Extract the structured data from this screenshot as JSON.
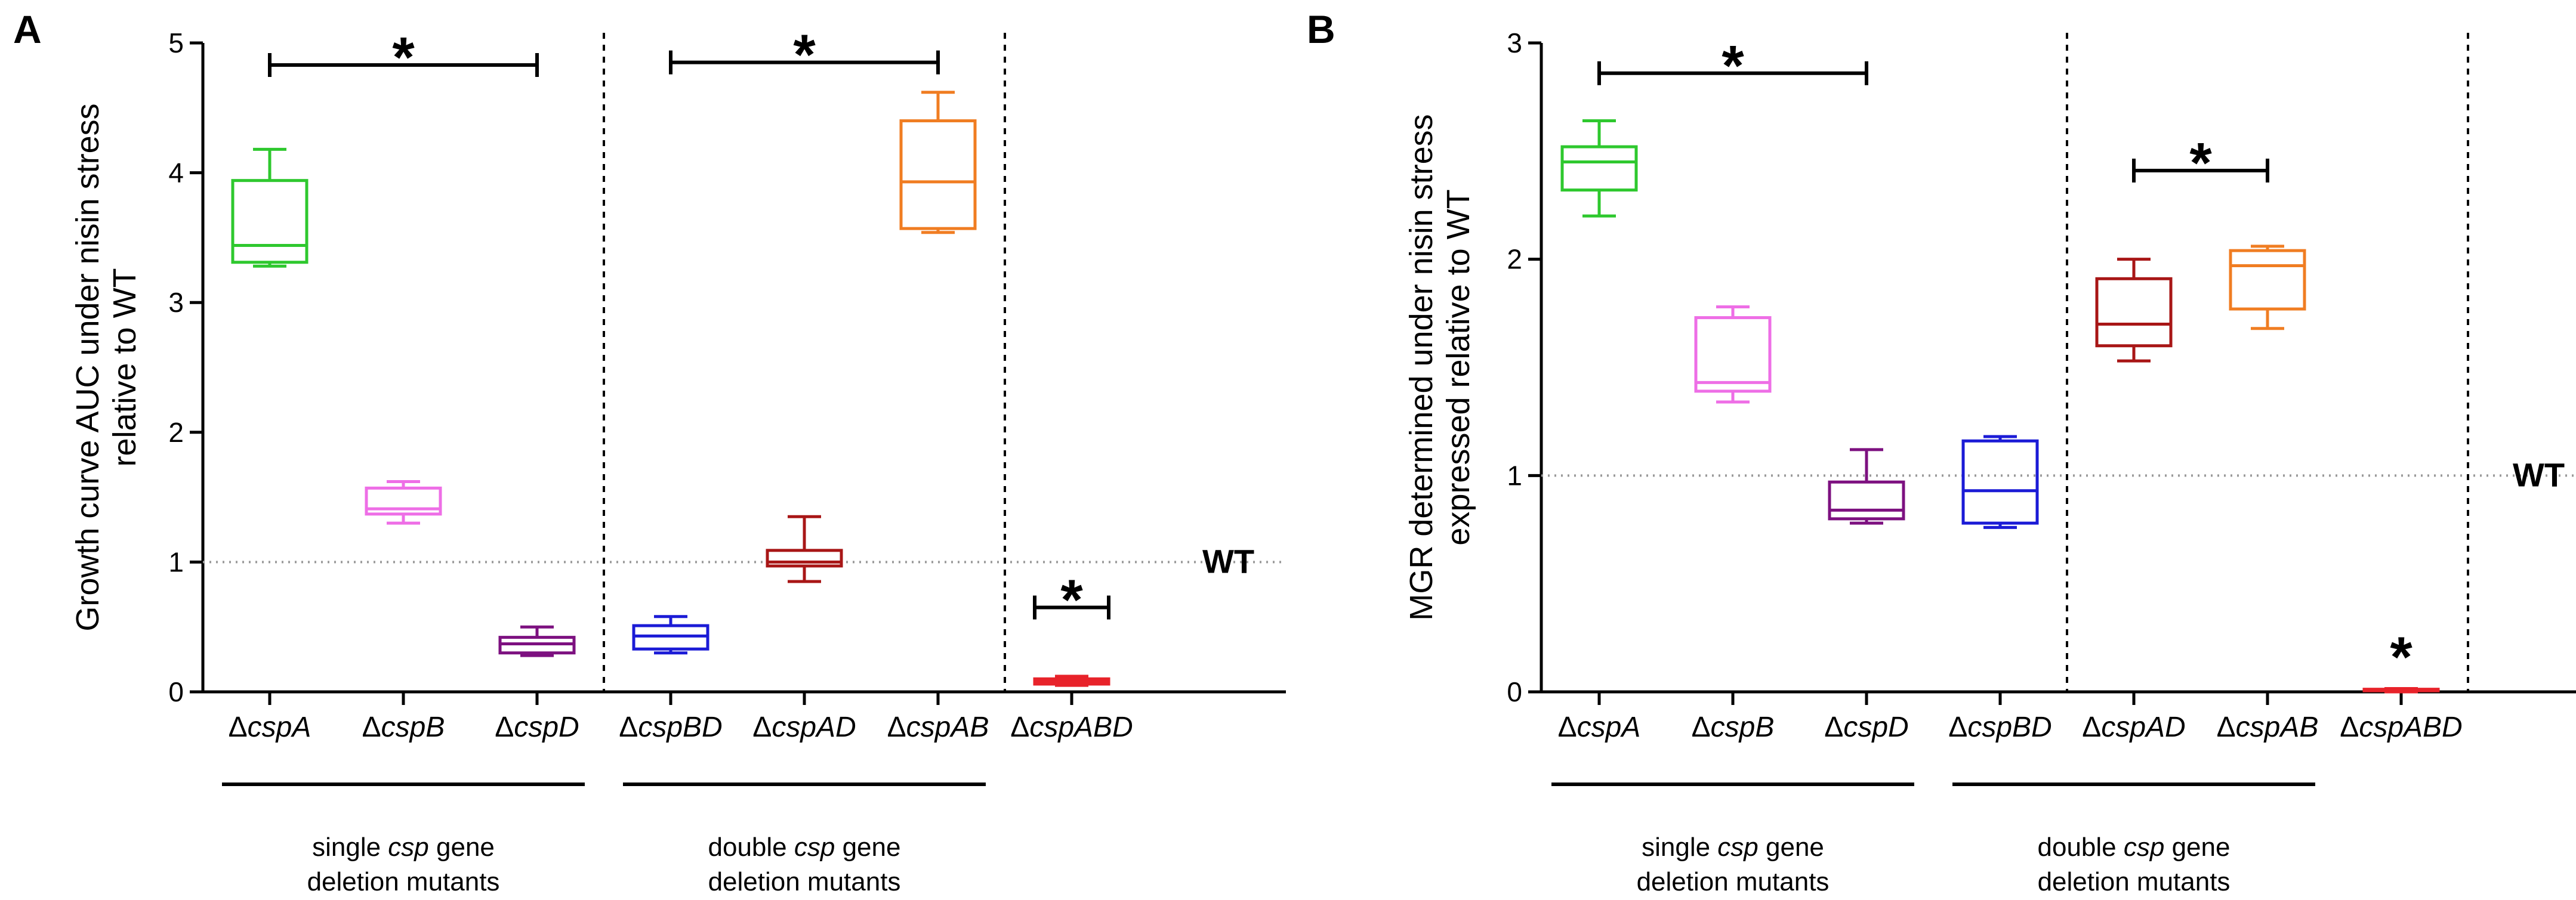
{
  "chart_data": [
    {
      "type": "box",
      "panel": "A",
      "ylabel_lines": [
        "Growth curve AUC under nisin stress",
        "relative to WT"
      ],
      "ylim": [
        0,
        5
      ],
      "yticks": [
        0,
        1,
        2,
        3,
        4,
        5
      ],
      "ytick_labels": [
        "0",
        "1",
        "2",
        "3",
        "4",
        "5"
      ],
      "reference_line": {
        "value": 1,
        "label": "WT"
      },
      "categories": [
        {
          "prefix": "Δ",
          "name": "cspA",
          "color": "#2ec82e",
          "box": {
            "min": 3.28,
            "q1": 3.31,
            "median": 3.44,
            "q3": 3.94,
            "max": 4.18
          }
        },
        {
          "prefix": "Δ",
          "name": "cspB",
          "color": "#ee6ee6",
          "box": {
            "min": 1.3,
            "q1": 1.37,
            "median": 1.41,
            "q3": 1.57,
            "max": 1.62
          }
        },
        {
          "prefix": "Δ",
          "name": "cspD",
          "color": "#7d1180",
          "box": {
            "min": 0.28,
            "q1": 0.3,
            "median": 0.37,
            "q3": 0.42,
            "max": 0.5
          }
        },
        {
          "prefix": "Δ",
          "name": "cspBD",
          "color": "#1b1bd6",
          "box": {
            "min": 0.3,
            "q1": 0.33,
            "median": 0.43,
            "q3": 0.51,
            "max": 0.58
          }
        },
        {
          "prefix": "Δ",
          "name": "cspAD",
          "color": "#a81616",
          "box": {
            "min": 0.85,
            "q1": 0.97,
            "median": 1.0,
            "q3": 1.09,
            "max": 1.35
          }
        },
        {
          "prefix": "Δ",
          "name": "cspAB",
          "color": "#f07d22",
          "box": {
            "min": 3.54,
            "q1": 3.57,
            "median": 3.93,
            "q3": 4.4,
            "max": 4.62
          }
        },
        {
          "prefix": "Δ",
          "name": "cspABD",
          "color": "#e8232a",
          "box": {
            "min": 0.05,
            "q1": 0.06,
            "median": 0.08,
            "q3": 0.1,
            "max": 0.12
          }
        }
      ],
      "significance": [
        {
          "from": 0,
          "to": 2,
          "y": 4.83,
          "label": "*"
        },
        {
          "from": 3,
          "to": 5,
          "y": 4.85,
          "label": "*"
        },
        {
          "from": 6,
          "to": 6,
          "y": 0.65,
          "label": "*"
        }
      ],
      "separators_after": [
        2,
        5
      ],
      "groups": [
        {
          "from": 0,
          "to": 2,
          "lines": [
            {
              "pre": "single ",
              "em": "csp",
              "post": " gene"
            },
            {
              "pre": "deletion mutants",
              "em": "",
              "post": ""
            }
          ]
        },
        {
          "from": 3,
          "to": 5,
          "lines": [
            {
              "pre": "double ",
              "em": "csp",
              "post": " gene"
            },
            {
              "pre": "deletion mutants",
              "em": "",
              "post": ""
            }
          ]
        }
      ]
    },
    {
      "type": "box",
      "panel": "B",
      "ylabel_lines": [
        "MGR determined under nisin stress",
        "expressed relative to WT"
      ],
      "ylim": [
        0,
        3
      ],
      "yticks": [
        0,
        1,
        2,
        3
      ],
      "ytick_labels": [
        "0",
        "1",
        "2",
        "3"
      ],
      "reference_line": {
        "value": 1,
        "label": "WT"
      },
      "categories": [
        {
          "prefix": "Δ",
          "name": "cspA",
          "color": "#2ec82e",
          "box": {
            "min": 2.2,
            "q1": 2.32,
            "median": 2.45,
            "q3": 2.52,
            "max": 2.64
          }
        },
        {
          "prefix": "Δ",
          "name": "cspB",
          "color": "#ee6ee6",
          "box": {
            "min": 1.34,
            "q1": 1.39,
            "median": 1.43,
            "q3": 1.73,
            "max": 1.78
          }
        },
        {
          "prefix": "Δ",
          "name": "cspD",
          "color": "#7d1180",
          "box": {
            "min": 0.78,
            "q1": 0.8,
            "median": 0.84,
            "q3": 0.97,
            "max": 1.12
          }
        },
        {
          "prefix": "Δ",
          "name": "cspBD",
          "color": "#1b1bd6",
          "box": {
            "min": 0.76,
            "q1": 0.78,
            "median": 0.93,
            "q3": 1.16,
            "max": 1.18
          }
        },
        {
          "prefix": "Δ",
          "name": "cspAD",
          "color": "#a81616",
          "box": {
            "min": 1.53,
            "q1": 1.6,
            "median": 1.7,
            "q3": 1.91,
            "max": 2.0
          }
        },
        {
          "prefix": "Δ",
          "name": "cspAB",
          "color": "#f07d22",
          "box": {
            "min": 1.68,
            "q1": 1.77,
            "median": 1.97,
            "q3": 2.04,
            "max": 2.06
          }
        },
        {
          "prefix": "Δ",
          "name": "cspABD",
          "color": "#e8232a",
          "box": {
            "min": 0.0,
            "q1": 0.005,
            "median": 0.008,
            "q3": 0.012,
            "max": 0.015
          }
        }
      ],
      "significance": [
        {
          "from": 0,
          "to": 2,
          "y": 2.86,
          "label": "*"
        },
        {
          "from": 4,
          "to": 5,
          "y": 2.41,
          "label": "*"
        },
        {
          "from": 6,
          "to": 6,
          "y": null,
          "label": "*"
        }
      ],
      "separators_after": [
        3,
        6
      ],
      "groups": [
        {
          "from": 0,
          "to": 2,
          "lines": [
            {
              "pre": "single ",
              "em": "csp",
              "post": " gene"
            },
            {
              "pre": "deletion mutants",
              "em": "",
              "post": ""
            }
          ]
        },
        {
          "from": 3,
          "to": 5,
          "lines": [
            {
              "pre": "double ",
              "em": "csp",
              "post": " gene"
            },
            {
              "pre": "deletion mutants",
              "em": "",
              "post": ""
            }
          ]
        }
      ]
    }
  ]
}
